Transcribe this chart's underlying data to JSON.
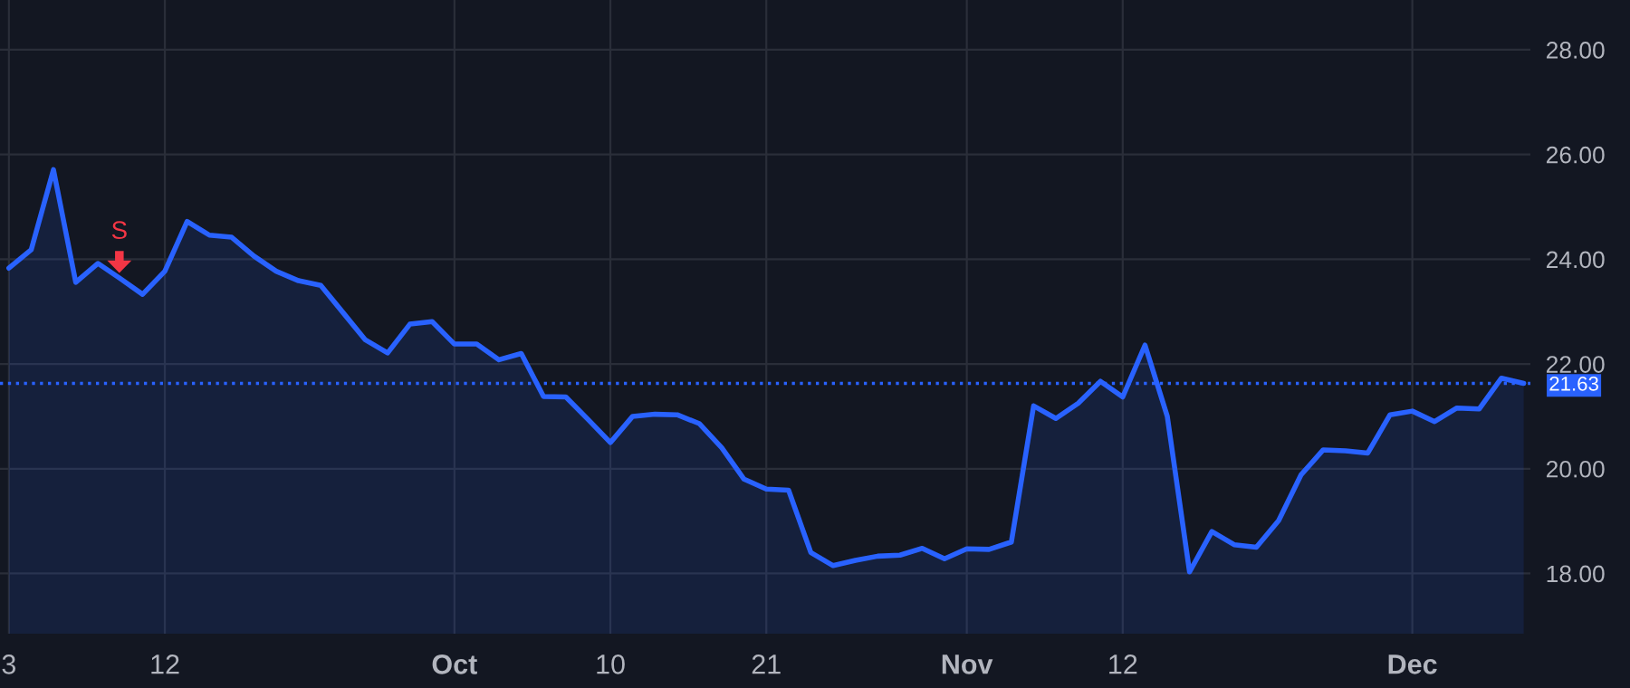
{
  "chart_data": {
    "type": "area",
    "categories": [
      "3",
      null,
      null,
      null,
      null,
      null,
      null,
      "12",
      null,
      null,
      null,
      null,
      null,
      null,
      null,
      null,
      null,
      null,
      null,
      null,
      "Oct",
      null,
      null,
      null,
      null,
      null,
      null,
      "10",
      null,
      null,
      null,
      null,
      null,
      null,
      "21",
      null,
      null,
      null,
      null,
      null,
      null,
      null,
      null,
      "Nov",
      null,
      null,
      null,
      null,
      null,
      null,
      "12",
      null,
      null,
      null,
      null,
      null,
      null,
      null,
      null,
      null,
      null,
      null,
      null,
      "Dec",
      null,
      null,
      null,
      null,
      null
    ],
    "series": [
      {
        "color": "#2962ff",
        "values": [
          23.83,
          24.18,
          25.71,
          23.56,
          23.92,
          23.63,
          23.33,
          23.77,
          24.72,
          24.46,
          24.42,
          24.06,
          23.77,
          23.59,
          23.5,
          22.98,
          22.46,
          22.21,
          22.76,
          22.81,
          22.38,
          22.38,
          22.08,
          22.2,
          21.38,
          21.37,
          20.94,
          20.5,
          21.0,
          21.04,
          21.03,
          20.86,
          20.4,
          19.8,
          19.61,
          19.59,
          18.4,
          18.15,
          18.25,
          18.33,
          18.35,
          18.48,
          18.28,
          18.47,
          18.46,
          18.6,
          21.2,
          20.96,
          21.25,
          21.67,
          21.37,
          22.36,
          21.0,
          18.03,
          18.8,
          18.55,
          18.5,
          19.01,
          19.88,
          20.36,
          20.34,
          20.3,
          21.03,
          21.1,
          20.9,
          21.16,
          21.14,
          21.73,
          21.63
        ]
      }
    ],
    "ylim": [
      16.85,
      28.95
    ],
    "yticks": [
      {
        "value": 18,
        "label": "18.00"
      },
      {
        "value": 20,
        "label": "20.00"
      },
      {
        "value": 22,
        "label": "22.00"
      },
      {
        "value": 24,
        "label": "24.00"
      },
      {
        "value": 26,
        "label": "26.00"
      },
      {
        "value": 28,
        "label": "28.00"
      }
    ],
    "grid": true,
    "line_style": "solid",
    "ref_lines": [
      {
        "axis": "y",
        "value": 21.63,
        "label": "21.63",
        "color": "#2962ff",
        "line_style": "dotted"
      }
    ],
    "annotations": [
      "S"
    ]
  }
}
